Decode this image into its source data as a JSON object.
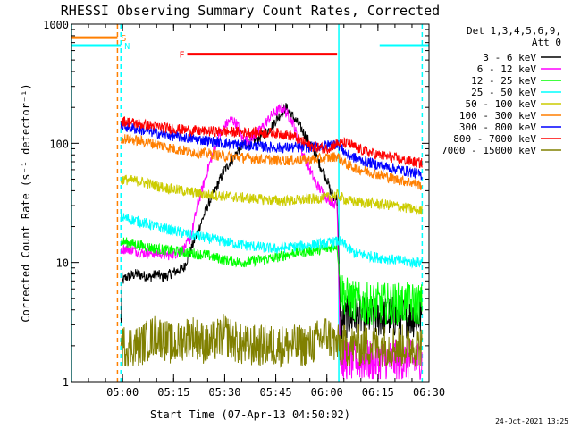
{
  "chart_data": {
    "type": "line",
    "title": "RHESSI Observing Summary Count Rates, Corrected",
    "xlabel": "Start Time (07-Apr-13 04:50:02)",
    "ylabel": "Corrected Count Rate (s⁻¹ detector⁻¹)",
    "yscale": "log",
    "ylim": [
      1,
      1000
    ],
    "xlim_minutes": [
      -5,
      100
    ],
    "xticks": [
      {
        "label": "05:00",
        "m": 10
      },
      {
        "label": "05:15",
        "m": 25
      },
      {
        "label": "05:30",
        "m": 40
      },
      {
        "label": "05:45",
        "m": 55
      },
      {
        "label": "06:00",
        "m": 70
      },
      {
        "label": "06:15",
        "m": 85
      },
      {
        "label": "06:30",
        "m": 100
      }
    ],
    "yticks": [
      {
        "label": "1",
        "v": 1
      },
      {
        "label": "10",
        "v": 10
      },
      {
        "label": "100",
        "v": 100
      },
      {
        "label": "1000",
        "v": 1000
      }
    ],
    "legend_header": [
      "Det 1,3,4,5,6,9,",
      "Att 0"
    ],
    "legend_position": "right",
    "footer_date": "24-Oct-2021 13:25",
    "flags": [
      {
        "label": "S",
        "color": "#ff7f00",
        "y": 770,
        "x1": -5,
        "x2": 8.5
      },
      {
        "label": "N",
        "color": "#00ffff",
        "y": 660,
        "x1": -5,
        "x2": 9.5
      },
      {
        "label": "",
        "color": "#00ffff",
        "y": 660,
        "x1": 85.5,
        "x2": 100
      },
      {
        "label": "F",
        "color": "#ff0000",
        "y": 560,
        "x1": 29,
        "x2": 73
      }
    ],
    "vlines": [
      {
        "m": 8.5,
        "color": "#ff7f00",
        "style": "dashed"
      },
      {
        "m": 9.5,
        "color": "#00ffff",
        "style": "dashed"
      },
      {
        "m": 98,
        "color": "#00ffff",
        "style": "dashed"
      },
      {
        "m": -5,
        "color": "#00ffff",
        "style": "solid"
      },
      {
        "m": 73.5,
        "color": "#00ffff",
        "style": "solid"
      }
    ],
    "series": [
      {
        "name": "3 - 6 keV",
        "color": "#000000",
        "x": [
          9.5,
          10,
          11,
          14,
          18,
          20,
          22,
          24,
          26,
          28,
          31,
          35,
          40,
          45,
          50,
          53,
          56,
          58,
          62,
          66,
          68,
          70,
          71,
          72,
          73,
          74,
          76,
          80,
          85,
          90,
          95,
          98
        ],
        "y": [
          3,
          7,
          7.5,
          8,
          7.5,
          8,
          7.5,
          8,
          8.5,
          9,
          15,
          30,
          60,
          95,
          110,
          130,
          170,
          200,
          140,
          90,
          65,
          50,
          40,
          35,
          35,
          3,
          3.5,
          3.5,
          3.5,
          3.5,
          3.5,
          3.5
        ]
      },
      {
        "name": "6 - 12 keV",
        "color": "#ff00ff",
        "x": [
          9.5,
          12,
          16,
          20,
          24,
          26,
          28,
          30,
          32,
          35,
          38,
          40,
          42,
          44,
          45,
          47,
          50,
          54,
          57,
          60,
          63,
          65,
          67,
          70,
          73,
          74,
          78,
          84,
          90,
          95,
          98
        ],
        "y": [
          13,
          13,
          12,
          12,
          11.5,
          12,
          13,
          16,
          30,
          60,
          110,
          140,
          160,
          140,
          110,
          105,
          125,
          175,
          200,
          150,
          80,
          60,
          45,
          35,
          30,
          1.5,
          1.5,
          1.5,
          1.5,
          1.5,
          1.5
        ]
      },
      {
        "name": "12 - 25 keV",
        "color": "#00ff00",
        "x": [
          9.5,
          15,
          20,
          25,
          30,
          35,
          40,
          45,
          50,
          55,
          60,
          65,
          70,
          73,
          74,
          76,
          80,
          85,
          90,
          95,
          98
        ],
        "y": [
          15,
          14,
          13,
          12.5,
          12,
          11.5,
          10.5,
          10,
          10.5,
          11,
          12,
          12.5,
          13,
          14,
          6,
          5,
          4.5,
          4.5,
          4.5,
          4.5,
          4.5
        ]
      },
      {
        "name": "25 - 50 keV",
        "color": "#00ffff",
        "x": [
          9.5,
          15,
          20,
          25,
          30,
          35,
          40,
          45,
          50,
          55,
          60,
          65,
          70,
          73,
          74,
          78,
          85,
          90,
          95,
          98
        ],
        "y": [
          24,
          22,
          20,
          18.5,
          17,
          16,
          15,
          14,
          13.5,
          13,
          13.5,
          14,
          14.5,
          15,
          15,
          12,
          11,
          10.5,
          10,
          10
        ]
      },
      {
        "name": "50 - 100 keV",
        "color": "#cccc00",
        "x": [
          9.5,
          15,
          20,
          25,
          30,
          35,
          40,
          45,
          50,
          55,
          60,
          65,
          70,
          73,
          76,
          80,
          85,
          90,
          95,
          98
        ],
        "y": [
          50,
          48,
          44,
          41,
          39,
          37,
          36,
          35,
          34,
          33,
          33,
          34,
          35,
          37,
          33,
          32,
          31,
          30,
          28,
          27
        ]
      },
      {
        "name": "100 - 300 keV",
        "color": "#ff7f00",
        "x": [
          9.5,
          15,
          20,
          25,
          30,
          35,
          40,
          45,
          50,
          55,
          60,
          65,
          70,
          73,
          76,
          80,
          85,
          90,
          95,
          98
        ],
        "y": [
          110,
          105,
          98,
          90,
          85,
          82,
          78,
          76,
          74,
          72,
          72,
          73,
          75,
          78,
          66,
          60,
          55,
          50,
          47,
          44
        ]
      },
      {
        "name": "300 - 800 keV",
        "color": "#0000ff",
        "x": [
          9.5,
          15,
          20,
          25,
          30,
          35,
          40,
          45,
          50,
          55,
          60,
          65,
          70,
          73,
          76,
          80,
          85,
          90,
          95,
          98
        ],
        "y": [
          140,
          130,
          122,
          115,
          110,
          105,
          100,
          97,
          94,
          92,
          92,
          93,
          96,
          100,
          80,
          72,
          66,
          61,
          57,
          54
        ]
      },
      {
        "name": "800 - 7000 keV",
        "color": "#ff0000",
        "x": [
          9.5,
          15,
          20,
          25,
          30,
          35,
          40,
          45,
          50,
          55,
          60,
          65,
          70,
          73,
          76,
          80,
          85,
          90,
          95,
          98
        ],
        "y": [
          155,
          145,
          138,
          132,
          128,
          126,
          125,
          124,
          123,
          122,
          115,
          95,
          90,
          100,
          100,
          88,
          80,
          75,
          70,
          68
        ]
      },
      {
        "name": "7000 - 15000 keV",
        "color": "#808000",
        "x": [
          9.5,
          15,
          20,
          25,
          30,
          35,
          40,
          45,
          50,
          55,
          60,
          65,
          70,
          73,
          76,
          80,
          85,
          90,
          95,
          98
        ],
        "y": [
          2,
          2,
          2.5,
          2,
          2.5,
          2,
          2.5,
          2,
          2,
          2,
          2,
          2,
          2.5,
          2,
          2,
          2,
          2,
          2,
          2,
          2
        ]
      }
    ]
  }
}
